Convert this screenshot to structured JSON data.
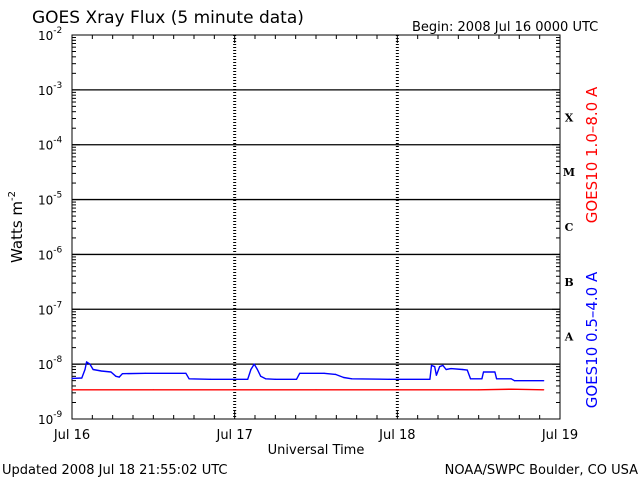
{
  "header": {
    "title": "GOES Xray Flux (5 minute data)",
    "begin": "Begin:  2008 Jul 16 0000 UTC"
  },
  "footer": {
    "updated": "Updated 2008 Jul 18 21:55:02 UTC",
    "credit": "NOAA/SWPC Boulder, CO USA"
  },
  "colors": {
    "long_channel": "#ff0000",
    "short_channel": "#0000ff",
    "frame": "#000000"
  },
  "chart_data": {
    "type": "line",
    "title": "GOES Xray Flux (5 minute data)",
    "xlabel": "Universal Time",
    "ylabel": "Watts m",
    "ylabel_superscript": "-2",
    "yscale": "log",
    "ylim": [
      1e-09,
      0.01
    ],
    "xlim_days": [
      0,
      3
    ],
    "x_ticks": [
      "Jul 16",
      "Jul 17",
      "Jul 18",
      "Jul 19"
    ],
    "y_ticks": [
      {
        "base": "10",
        "exp": "-2"
      },
      {
        "base": "10",
        "exp": "-3"
      },
      {
        "base": "10",
        "exp": "-4"
      },
      {
        "base": "10",
        "exp": "-5"
      },
      {
        "base": "10",
        "exp": "-6"
      },
      {
        "base": "10",
        "exp": "-7"
      },
      {
        "base": "10",
        "exp": "-8"
      },
      {
        "base": "10",
        "exp": "-9"
      }
    ],
    "flare_classes": [
      "X",
      "M",
      "C",
      "B",
      "A"
    ],
    "grid": true,
    "series": [
      {
        "name": "GOES10 1.0–8.0 A",
        "color": "#ff0000",
        "points": [
          [
            0.0,
            3.4e-09
          ],
          [
            0.5,
            3.4e-09
          ],
          [
            1.0,
            3.4e-09
          ],
          [
            1.5,
            3.4e-09
          ],
          [
            2.0,
            3.4e-09
          ],
          [
            2.5,
            3.4e-09
          ],
          [
            2.7,
            3.5e-09
          ],
          [
            2.9,
            3.4e-09
          ]
        ]
      },
      {
        "name": "GOES10 0.5–4.0 A",
        "color": "#0000ff",
        "points": [
          [
            0.0,
            5.5e-09
          ],
          [
            0.06,
            5.6e-09
          ],
          [
            0.08,
            8e-09
          ],
          [
            0.09,
            1.1e-08
          ],
          [
            0.11,
            1e-08
          ],
          [
            0.13,
            8e-09
          ],
          [
            0.18,
            7.5e-09
          ],
          [
            0.24,
            7.2e-09
          ],
          [
            0.27,
            6e-09
          ],
          [
            0.29,
            5.8e-09
          ],
          [
            0.31,
            6.7e-09
          ],
          [
            0.45,
            6.8e-09
          ],
          [
            0.7,
            6.8e-09
          ],
          [
            0.72,
            5.4e-09
          ],
          [
            0.85,
            5.3e-09
          ],
          [
            1.0,
            5.3e-09
          ],
          [
            1.08,
            5.3e-09
          ],
          [
            1.1,
            8e-09
          ],
          [
            1.12,
            1e-08
          ],
          [
            1.14,
            8e-09
          ],
          [
            1.16,
            6e-09
          ],
          [
            1.19,
            5.4e-09
          ],
          [
            1.25,
            5.3e-09
          ],
          [
            1.38,
            5.3e-09
          ],
          [
            1.4,
            6.8e-09
          ],
          [
            1.55,
            6.8e-09
          ],
          [
            1.62,
            6.5e-09
          ],
          [
            1.67,
            5.7e-09
          ],
          [
            1.72,
            5.4e-09
          ],
          [
            1.95,
            5.3e-09
          ],
          [
            2.2,
            5.3e-09
          ],
          [
            2.21,
            9.5e-09
          ],
          [
            2.23,
            9e-09
          ],
          [
            2.24,
            6.3e-09
          ],
          [
            2.26,
            9e-09
          ],
          [
            2.28,
            9.5e-09
          ],
          [
            2.3,
            8e-09
          ],
          [
            2.33,
            8.3e-09
          ],
          [
            2.4,
            8e-09
          ],
          [
            2.43,
            7.8e-09
          ],
          [
            2.45,
            5.4e-09
          ],
          [
            2.52,
            5.4e-09
          ],
          [
            2.53,
            7.2e-09
          ],
          [
            2.6,
            7.2e-09
          ],
          [
            2.61,
            5.4e-09
          ],
          [
            2.7,
            5.4e-09
          ],
          [
            2.72,
            5e-09
          ],
          [
            2.9,
            5e-09
          ]
        ]
      }
    ]
  }
}
